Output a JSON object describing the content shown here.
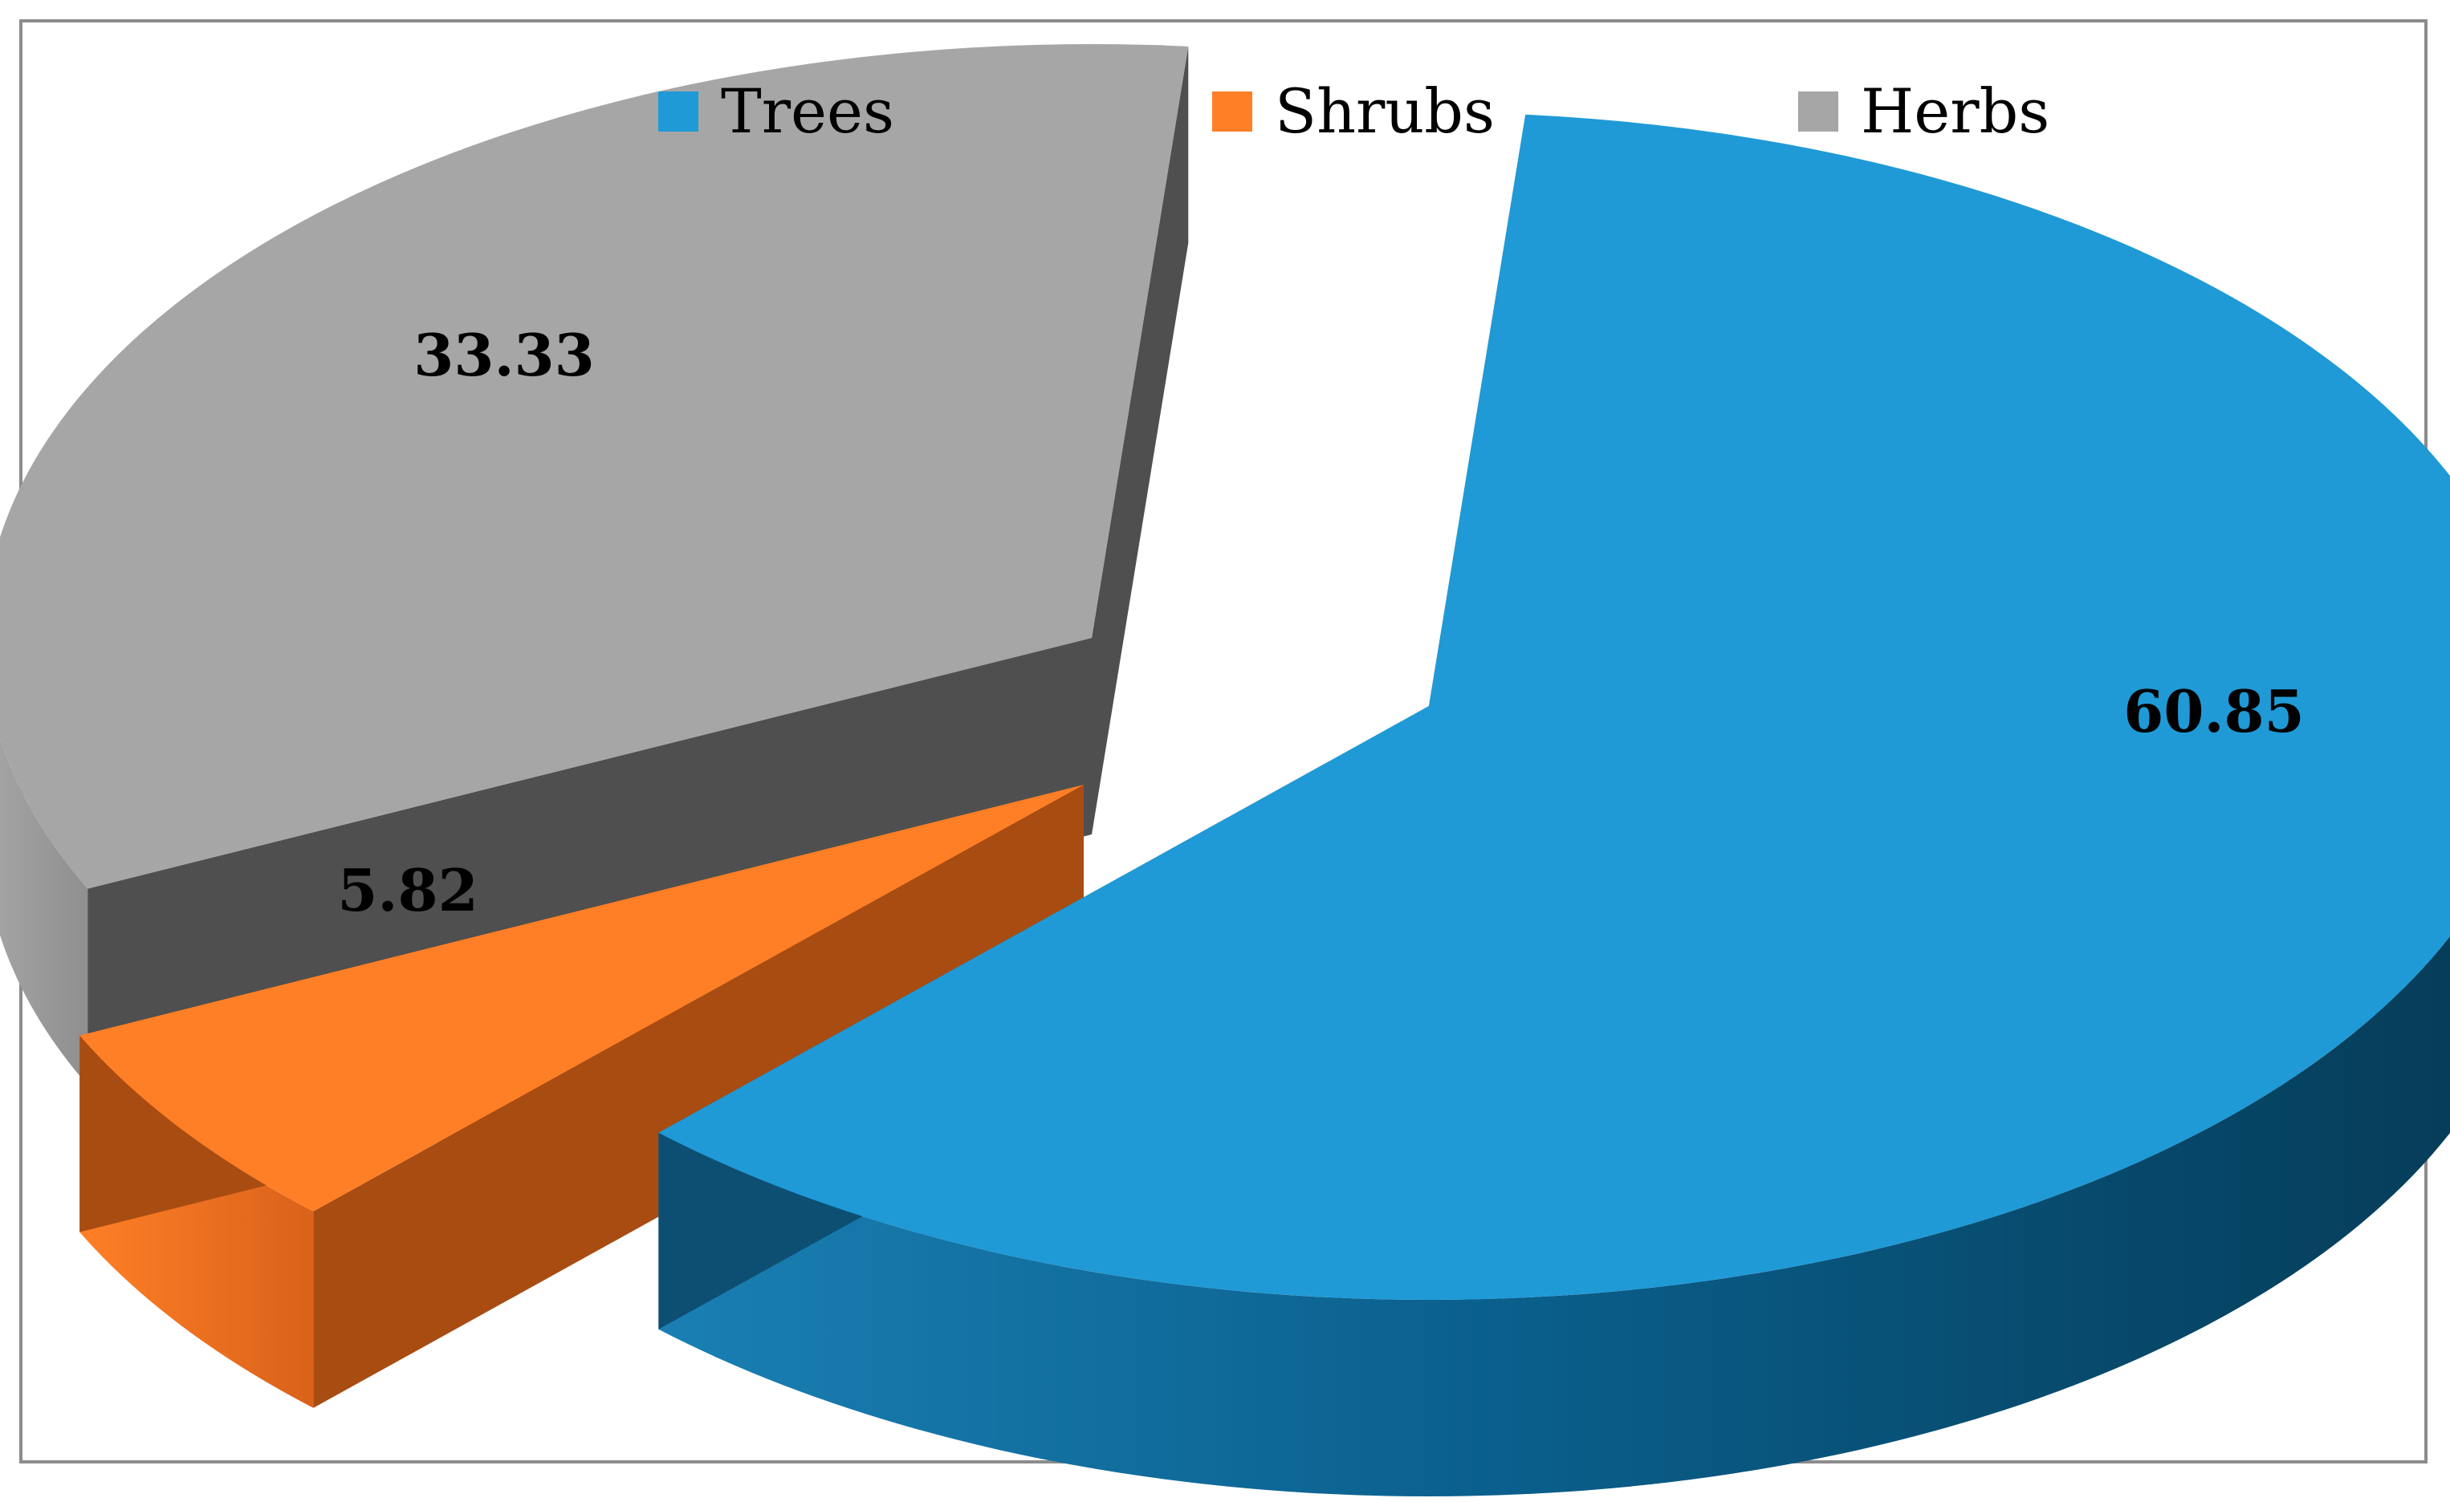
{
  "chart_data": {
    "type": "pie",
    "title": "",
    "categories": [
      "Trees",
      "Shrubs",
      "Herbs"
    ],
    "values": [
      60.85,
      5.82,
      33.33
    ],
    "data_labels": [
      "60.85",
      "5.82",
      "33.33"
    ],
    "colors": [
      "#1f9ad6",
      "#ff7f27",
      "#a6a6a6"
    ],
    "legend_position": "top",
    "style": "3d-exploded"
  }
}
